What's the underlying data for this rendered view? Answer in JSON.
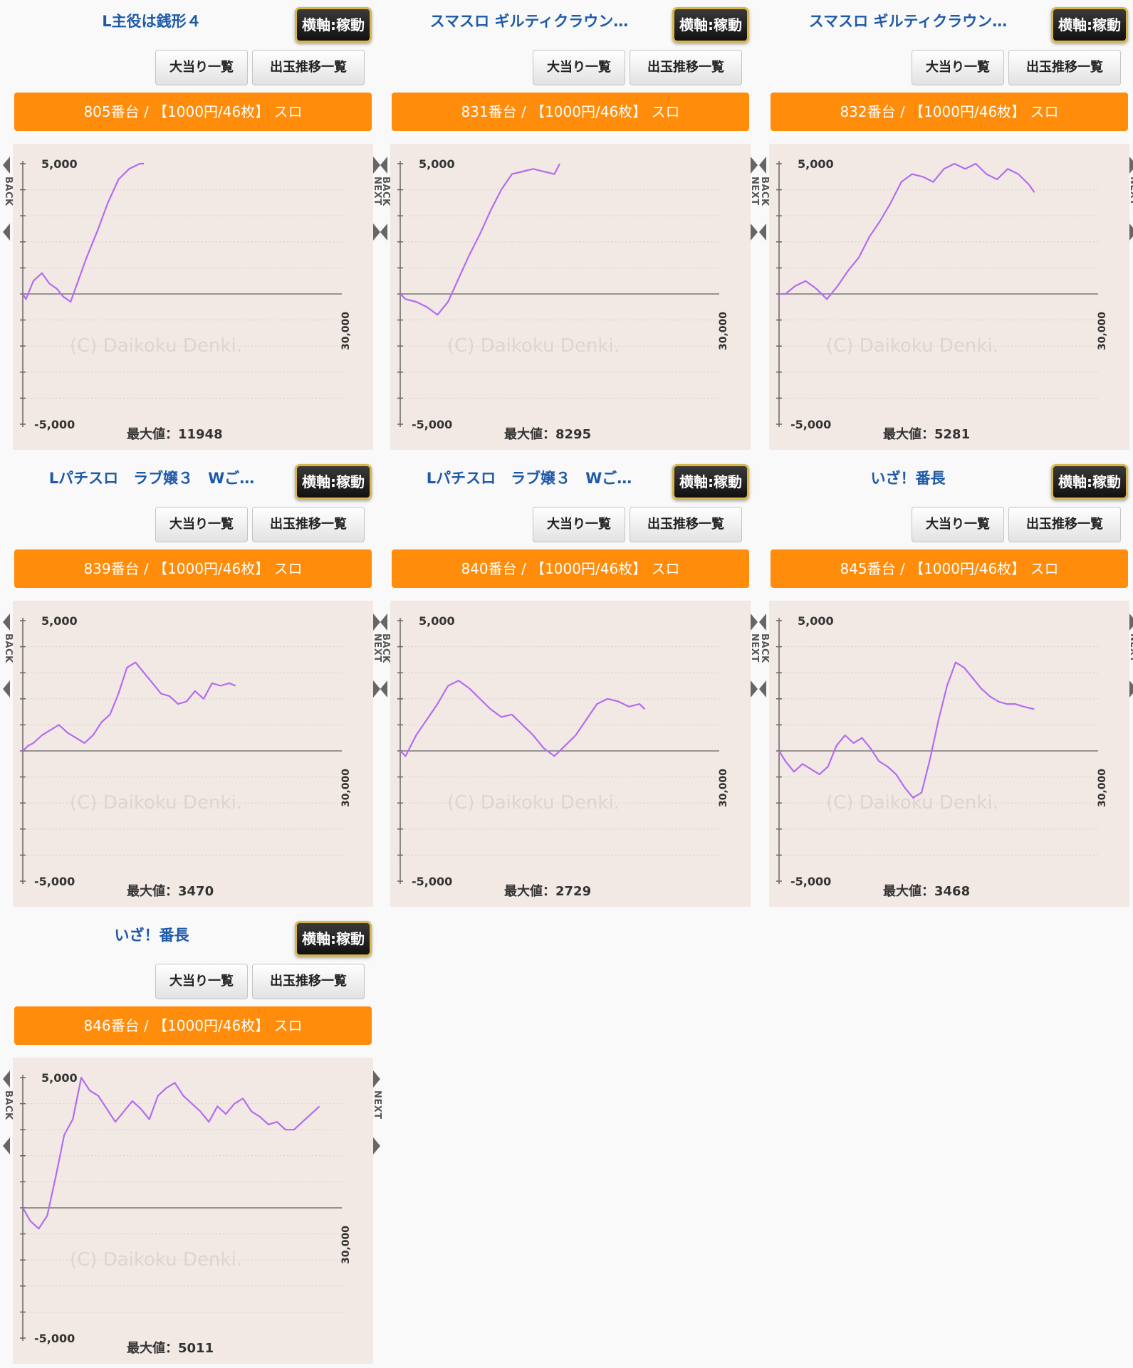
{
  "watermark": "(C) Daikoku Denki.",
  "nav": {
    "back": "BACK",
    "next": "NEXT"
  },
  "buttons": {
    "hits": "大当り一覧",
    "trend": "出玉推移一覧",
    "axis": "横軸:稼動"
  },
  "axis_labels": {
    "y_max": "5,000",
    "y_min": "-5,000",
    "x_max": "30,000"
  },
  "line_color": "#b36cf2",
  "panels": [
    {
      "title": "L主役は銭形４",
      "machine": "805番台 / 【1000円/46枚】 スロ",
      "max_label": "最大値：11948",
      "chart_data": {
        "type": "line",
        "xlim": [
          0,
          30000
        ],
        "ylim": [
          -5000,
          5000
        ],
        "x": [
          0,
          300,
          1000,
          1800,
          2500,
          3200,
          3800,
          4500,
          5200,
          6000,
          7000,
          8000,
          9000,
          10000,
          11000,
          11400
        ],
        "y": [
          0,
          -200,
          500,
          800,
          400,
          200,
          -100,
          -300,
          500,
          1400,
          2400,
          3500,
          4400,
          4800,
          5000,
          5000
        ]
      }
    },
    {
      "title": "スマスロ ギルティクラウン…",
      "machine": "831番台 / 【1000円/46枚】 スロ",
      "max_label": "最大値：8295",
      "chart_data": {
        "type": "line",
        "xlim": [
          0,
          30000
        ],
        "ylim": [
          -5000,
          5000
        ],
        "x": [
          0,
          500,
          1500,
          2500,
          3500,
          4500,
          5500,
          6500,
          7500,
          8500,
          9500,
          10500,
          11500,
          12500,
          13500,
          14500,
          15000
        ],
        "y": [
          0,
          -200,
          -300,
          -500,
          -800,
          -300,
          600,
          1500,
          2300,
          3200,
          4000,
          4600,
          4700,
          4800,
          4700,
          4600,
          5000
        ]
      }
    },
    {
      "title": "スマスロ ギルティクラウン…",
      "machine": "832番台 / 【1000円/46枚】 スロ",
      "max_label": "最大値：5281",
      "chart_data": {
        "type": "line",
        "xlim": [
          0,
          30000
        ],
        "ylim": [
          -5000,
          5000
        ],
        "x": [
          0,
          600,
          1500,
          2500,
          3500,
          4500,
          5500,
          6500,
          7500,
          8500,
          9500,
          10500,
          11500,
          12500,
          13500,
          14500,
          15500,
          16500,
          17500,
          18500,
          19500,
          20500,
          21500,
          22500,
          23500,
          24000
        ],
        "y": [
          0,
          0,
          300,
          500,
          200,
          -200,
          300,
          900,
          1400,
          2200,
          2800,
          3500,
          4300,
          4600,
          4500,
          4300,
          4800,
          5000,
          4800,
          5000,
          4600,
          4400,
          4800,
          4600,
          4200,
          3900
        ]
      }
    },
    {
      "title": "Lパチスロ　ラブ嬢３　Wご…",
      "machine": "839番台 / 【1000円/46枚】 スロ",
      "max_label": "最大値：3470",
      "chart_data": {
        "type": "line",
        "xlim": [
          0,
          30000
        ],
        "ylim": [
          -5000,
          5000
        ],
        "x": [
          0,
          500,
          1000,
          1800,
          2600,
          3400,
          4200,
          5000,
          5800,
          6600,
          7400,
          8200,
          9000,
          9800,
          10600,
          11400,
          12200,
          13000,
          13800,
          14600,
          15400,
          16200,
          17000,
          17800,
          18600,
          19400,
          20000
        ],
        "y": [
          0,
          200,
          300,
          600,
          800,
          1000,
          700,
          500,
          300,
          600,
          1100,
          1400,
          2200,
          3200,
          3400,
          3000,
          2600,
          2200,
          2100,
          1800,
          1900,
          2300,
          2000,
          2600,
          2500,
          2600,
          2500
        ]
      }
    },
    {
      "title": "Lパチスロ　ラブ嬢３　Wご…",
      "machine": "840番台 / 【1000円/46枚】 スロ",
      "max_label": "最大値：2729",
      "chart_data": {
        "type": "line",
        "xlim": [
          0,
          30000
        ],
        "ylim": [
          -5000,
          5000
        ],
        "x": [
          0,
          500,
          1500,
          2500,
          3500,
          4500,
          5500,
          6500,
          7500,
          8500,
          9500,
          10500,
          11500,
          12500,
          13500,
          14500,
          15500,
          16500,
          17500,
          18500,
          19500,
          20500,
          21500,
          22500,
          23000
        ],
        "y": [
          0,
          -200,
          600,
          1200,
          1800,
          2500,
          2700,
          2400,
          2000,
          1600,
          1300,
          1400,
          1000,
          600,
          100,
          -200,
          200,
          600,
          1200,
          1800,
          2000,
          1900,
          1700,
          1800,
          1600
        ]
      }
    },
    {
      "title": "いざ！番長",
      "machine": "845番台 / 【1000円/46枚】 スロ",
      "max_label": "最大値：3468",
      "chart_data": {
        "type": "line",
        "xlim": [
          0,
          30000
        ],
        "ylim": [
          -5000,
          5000
        ],
        "x": [
          0,
          600,
          1400,
          2200,
          3000,
          3800,
          4600,
          5400,
          6200,
          7000,
          7800,
          8600,
          9400,
          10200,
          11000,
          11800,
          12600,
          13400,
          14200,
          15000,
          15800,
          16600,
          17400,
          18200,
          19000,
          19800,
          20600,
          21400,
          22200,
          23000,
          24000
        ],
        "y": [
          0,
          -400,
          -800,
          -500,
          -700,
          -900,
          -600,
          200,
          600,
          300,
          500,
          100,
          -400,
          -600,
          -900,
          -1400,
          -1800,
          -1600,
          -300,
          1200,
          2500,
          3400,
          3200,
          2800,
          2400,
          2100,
          1900,
          1800,
          1800,
          1700,
          1600
        ]
      }
    },
    {
      "title": "いざ！番長",
      "machine": "846番台 / 【1000円/46枚】 スロ",
      "max_label": "最大値：5011",
      "chart_data": {
        "type": "line",
        "xlim": [
          0,
          30000
        ],
        "ylim": [
          -5000,
          5000
        ],
        "x": [
          0,
          700,
          1500,
          2300,
          3100,
          3900,
          4700,
          5500,
          6300,
          7100,
          7900,
          8700,
          9500,
          10300,
          11100,
          11900,
          12700,
          13500,
          14300,
          15100,
          15900,
          16700,
          17500,
          18300,
          19100,
          19900,
          20700,
          21500,
          22300,
          23100,
          23900,
          24700,
          25500,
          26300,
          27100,
          27900
        ],
        "y": [
          0,
          -500,
          -800,
          -300,
          1200,
          2800,
          3400,
          5000,
          4500,
          4300,
          3800,
          3300,
          3700,
          4100,
          3800,
          3400,
          4300,
          4600,
          4800,
          4300,
          4000,
          3700,
          3300,
          3900,
          3600,
          4000,
          4200,
          3700,
          3500,
          3200,
          3300,
          3000,
          3000,
          3300,
          3600,
          3900
        ]
      }
    }
  ]
}
